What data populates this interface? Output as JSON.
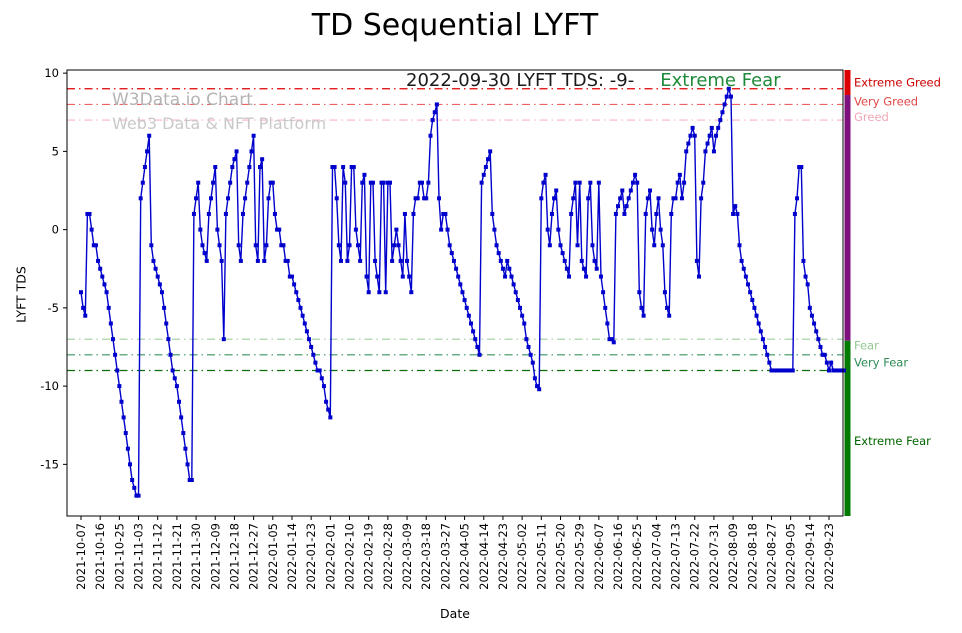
{
  "title": "TD Sequential LYFT",
  "annotation": {
    "text": "2022-09-30 LYFT TDS: -9-",
    "status": "Extreme Fear"
  },
  "watermark": {
    "line1": "W3Data.io Chart",
    "line2": "Web3 Data & NFT Platform"
  },
  "axes": {
    "ylabel": "LYFT TDS",
    "xlabel": "Date",
    "y_ticks": [
      10,
      5,
      0,
      -5,
      -10,
      -15
    ],
    "ylim": [
      -18.3,
      10.2
    ]
  },
  "thresholds": [
    {
      "value": 9,
      "color": "#e00000"
    },
    {
      "value": 8,
      "color": "#ef6060"
    },
    {
      "value": 7,
      "color": "#f9b4c0"
    },
    {
      "value": -7,
      "color": "#9fce9f"
    },
    {
      "value": -8,
      "color": "#39945e"
    },
    {
      "value": -9,
      "color": "#0a6e0a"
    }
  ],
  "sidebar_zones": [
    {
      "name": "greed-zone",
      "from": 10.2,
      "to": 8.6,
      "color": "#dd0000"
    },
    {
      "name": "neutral-zone",
      "from": 8.6,
      "to": -7.1,
      "color": "#7d107d"
    },
    {
      "name": "fear-zone",
      "from": -7.1,
      "to": -18.3,
      "color": "#007a00"
    }
  ],
  "right_labels": [
    {
      "label": "Extreme Greed",
      "y": 9.4,
      "color": "#cc0000"
    },
    {
      "label": "Very Greed",
      "y": 8.2,
      "color": "#e04848"
    },
    {
      "label": "Greed",
      "y": 7.2,
      "color": "#f2a7b5"
    },
    {
      "label": "Fear",
      "y": -7.4,
      "color": "#94c794"
    },
    {
      "label": "Very Fear",
      "y": -8.5,
      "color": "#2e8b57"
    },
    {
      "label": "Extreme Fear",
      "y": -13.5,
      "color": "#006400"
    }
  ],
  "chart_data": {
    "type": "line",
    "title": "TD Sequential LYFT",
    "series_name": "LYFT TDS",
    "line_color": "#0000cd",
    "marker": "square",
    "start_date": "2021-10-07",
    "end_date": "2022-09-30",
    "tick_interval_points": 9,
    "x_tick_labels": [
      "2021-10-07",
      "2021-10-16",
      "2021-10-25",
      "2021-11-03",
      "2021-11-12",
      "2021-11-21",
      "2021-11-30",
      "2021-12-09",
      "2021-12-18",
      "2021-12-27",
      "2022-01-05",
      "2022-01-14",
      "2022-01-23",
      "2022-02-01",
      "2022-02-10",
      "2022-02-19",
      "2022-02-28",
      "2022-03-09",
      "2022-03-18",
      "2022-03-27",
      "2022-04-05",
      "2022-04-14",
      "2022-04-23",
      "2022-05-02",
      "2022-05-11",
      "2022-05-20",
      "2022-05-29",
      "2022-06-07",
      "2022-06-16",
      "2022-06-25",
      "2022-07-04",
      "2022-07-13",
      "2022-07-22",
      "2022-07-31",
      "2022-08-09",
      "2022-08-18",
      "2022-08-27",
      "2022-09-05",
      "2022-09-14",
      "2022-09-23"
    ],
    "values": [
      -4,
      -5,
      -5.5,
      1,
      1,
      0,
      -1,
      -1,
      -2,
      -2.5,
      -3,
      -3.5,
      -4,
      -5,
      -6,
      -7,
      -8,
      -9,
      -10,
      -11,
      -12,
      -13,
      -14,
      -15,
      -16,
      -16.5,
      -17,
      -17,
      2,
      3,
      4,
      5,
      6,
      -1,
      -2,
      -2.5,
      -3,
      -3.5,
      -4,
      -5,
      -6,
      -7,
      -8,
      -9,
      -9.5,
      -10,
      -11,
      -12,
      -13,
      -14,
      -15,
      -16,
      -16,
      1,
      2,
      3,
      0,
      -1,
      -1.5,
      -2,
      1,
      2,
      3,
      4,
      0,
      -1,
      -2,
      -7,
      1,
      2,
      3,
      4,
      4.5,
      5,
      -1,
      -2,
      1,
      2,
      3,
      4,
      5,
      6,
      -1,
      -2,
      4,
      4.5,
      -2,
      -1,
      2,
      3,
      3,
      1,
      0,
      0,
      -1,
      -1,
      -2,
      -2,
      -3,
      -3,
      -3.5,
      -4,
      -4.5,
      -5,
      -5.5,
      -6,
      -6.5,
      -7,
      -7.5,
      -8,
      -8.5,
      -9,
      -9,
      -9.5,
      -10,
      -11,
      -11.5,
      -12,
      4,
      4,
      2,
      -1,
      -2,
      4,
      3,
      -2,
      -1,
      4,
      4,
      0,
      -1,
      -2,
      3,
      3.5,
      -3,
      -4,
      3,
      3,
      -2,
      -3,
      -4,
      3,
      3,
      -4,
      3,
      3,
      -2,
      -1,
      0,
      -1,
      -2,
      -3,
      1,
      -2,
      -3,
      -4,
      1,
      2,
      2,
      3,
      3,
      2,
      2,
      3,
      6,
      7,
      7.5,
      8,
      2,
      0,
      1,
      1,
      0,
      -1,
      -1.5,
      -2,
      -2.5,
      -3,
      -3.5,
      -4,
      -4.5,
      -5,
      -5.5,
      -6,
      -6.5,
      -7,
      -7.5,
      -8,
      3,
      3.5,
      4,
      4.5,
      5,
      1,
      0,
      -1,
      -1.5,
      -2,
      -2.5,
      -3,
      -2,
      -2.5,
      -3,
      -3.5,
      -4,
      -4.5,
      -5,
      -5.5,
      -6,
      -7,
      -7.5,
      -8,
      -8.5,
      -9.5,
      -10,
      -10.2,
      2,
      3,
      3.5,
      0,
      -1,
      1,
      2,
      2.5,
      0,
      -1,
      -1.5,
      -2,
      -2.5,
      -3,
      1,
      2,
      3,
      -1,
      3,
      -2,
      -2.5,
      -3,
      2,
      3,
      -1,
      -2,
      -2.5,
      3,
      -3,
      -4,
      -5,
      -6,
      -7,
      -7,
      -7.2,
      1,
      1.5,
      2,
      2.5,
      1,
      1.5,
      2,
      2.5,
      3,
      3.5,
      3,
      -4,
      -5,
      -5.5,
      1,
      2,
      2.5,
      0,
      -1,
      1,
      2,
      0,
      -1,
      -4,
      -5,
      -5.5,
      1,
      2,
      2,
      3,
      3.5,
      2,
      3,
      5,
      5.5,
      6,
      6.5,
      6,
      -2,
      -3,
      2,
      3,
      5,
      5.5,
      6,
      6.5,
      5,
      6,
      6.5,
      7,
      7.5,
      8,
      8.5,
      9,
      8.5,
      1,
      1.5,
      1,
      -1,
      -2,
      -2.5,
      -3,
      -3.5,
      -4,
      -4.5,
      -5,
      -5.5,
      -6,
      -6.5,
      -7,
      -7.5,
      -8,
      -8.5,
      -9,
      -9,
      -9,
      -9,
      -9,
      -9,
      -9,
      -9,
      -9,
      -9,
      -9,
      1,
      2,
      4,
      4,
      -2,
      -3,
      -3.5,
      -5,
      -5.5,
      -6,
      -6.5,
      -7,
      -7.5,
      -8,
      -8,
      -8.5,
      -9,
      -8.5,
      -9,
      -9,
      -9,
      -9,
      -9,
      -9
    ]
  }
}
